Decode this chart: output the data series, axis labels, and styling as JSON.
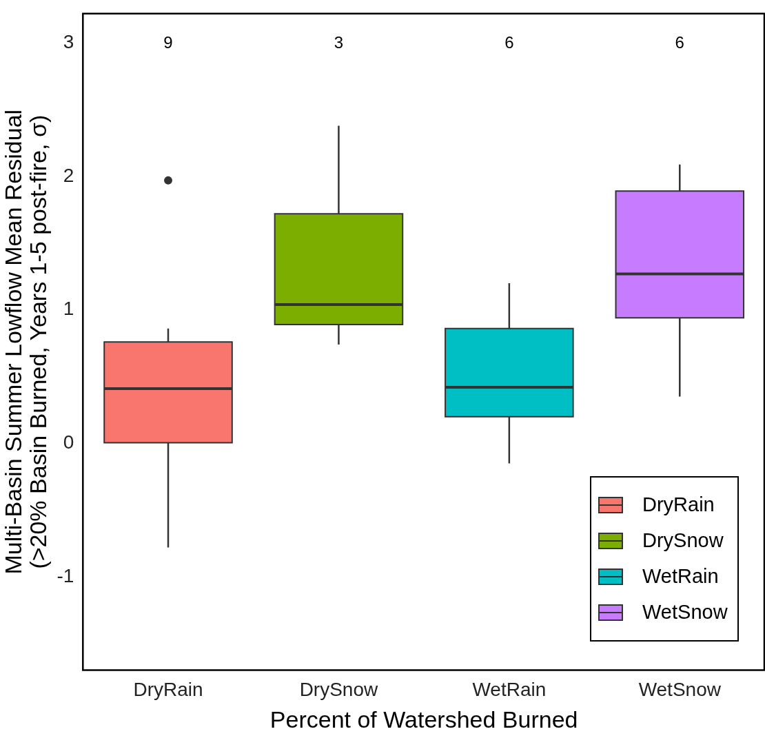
{
  "chart_data": {
    "type": "box",
    "xlabel": "Percent of Watershed Burned",
    "ylabel": "Multi-Basin Summer Lowflow Mean Residual\n(>20% Basin Burned, Years 1-5 post-fire, σ)",
    "categories": [
      "DryRain",
      "DrySnow",
      "WetRain",
      "WetSnow"
    ],
    "series": [
      {
        "name": "DryRain",
        "color": "#f8766d",
        "boxes": [
          {
            "low": -0.78,
            "q1": 0.005,
            "median": 0.41,
            "q3": 0.76,
            "high": 0.86,
            "outliers": [
              1.97
            ]
          },
          null,
          null,
          null
        ]
      },
      {
        "name": "DrySnow",
        "color": "#7cae00",
        "boxes": [
          null,
          {
            "low": 0.74,
            "q1": 0.89,
            "median": 1.04,
            "q3": 1.72,
            "high": 2.38
          },
          null,
          null
        ]
      },
      {
        "name": "WetRain",
        "color": "#00bfc4",
        "boxes": [
          null,
          null,
          {
            "low": -0.15,
            "q1": 0.2,
            "median": 0.42,
            "q3": 0.86,
            "high": 1.2
          },
          null
        ]
      },
      {
        "name": "WetSnow",
        "color": "#c77cff",
        "boxes": [
          null,
          null,
          null,
          {
            "low": 0.35,
            "q1": 0.94,
            "median": 1.27,
            "q3": 1.89,
            "high": 2.09
          }
        ]
      }
    ],
    "annotations": [
      "9",
      "3",
      "6",
      "6"
    ],
    "ylim": [
      -1.7,
      3.22
    ],
    "yticks": [
      -1,
      0,
      1,
      2,
      3
    ],
    "legend": "bottom right"
  }
}
